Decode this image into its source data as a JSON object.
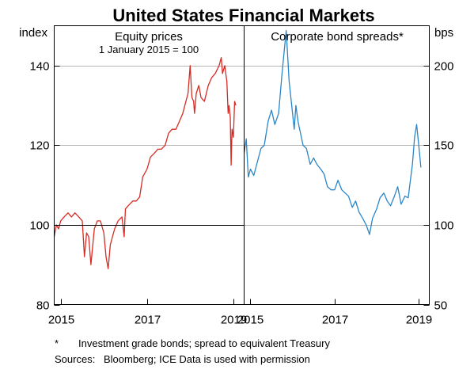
{
  "title": "United States Financial Markets",
  "footnote_marker": "*",
  "footnote_text": "Investment grade bonds; spread to equivalent Treasury",
  "sources": "Sources:",
  "sources_text": "Bloomberg; ICE Data is used with permission",
  "colors": {
    "equity": "#d62b24",
    "spreads": "#2a86c8",
    "grid": "#b4b4b4",
    "axis": "#000000"
  },
  "chart_data": [
    {
      "type": "line",
      "title": "Equity prices",
      "subtitle": "1 January 2015 = 100",
      "ylabel": "index",
      "ylim": [
        80,
        150
      ],
      "yticks": [
        80,
        100,
        120,
        140
      ],
      "xlim": [
        2014.85,
        2019.25
      ],
      "xticks": [
        2015,
        2017,
        2019
      ],
      "xticklabels": [
        "2015",
        "2017",
        "2019"
      ],
      "grid": true,
      "reference_line": 100,
      "series": [
        {
          "x": [
            2014.85,
            2014.9,
            2014.95,
            2015.0,
            2015.08,
            2015.17,
            2015.25,
            2015.33,
            2015.42,
            2015.5,
            2015.55,
            2015.6,
            2015.65,
            2015.7,
            2015.78,
            2015.85,
            2015.92,
            2016.0,
            2016.05,
            2016.1,
            2016.15,
            2016.2,
            2016.25,
            2016.33,
            2016.42,
            2016.47,
            2016.5,
            2016.58,
            2016.67,
            2016.75,
            2016.83,
            2016.9,
            2017.0,
            2017.08,
            2017.17,
            2017.25,
            2017.33,
            2017.42,
            2017.5,
            2017.58,
            2017.67,
            2017.75,
            2017.83,
            2017.9,
            2017.95,
            2018.0,
            2018.04,
            2018.08,
            2018.1,
            2018.14,
            2018.2,
            2018.25,
            2018.33,
            2018.42,
            2018.5,
            2018.58,
            2018.67,
            2018.72,
            2018.75,
            2018.8,
            2018.85,
            2018.88,
            2018.9,
            2018.93,
            2018.95,
            2018.97,
            2019.0,
            2019.03,
            2019.06
          ],
          "y": [
            97,
            100,
            99,
            101,
            102,
            103,
            102,
            103,
            102,
            101,
            92,
            98,
            97,
            90,
            99,
            101,
            101,
            98,
            92,
            89,
            95,
            97,
            99,
            101,
            102,
            97,
            104,
            105,
            106,
            106,
            107,
            112,
            114,
            117,
            118,
            119,
            119,
            120,
            123,
            124,
            124,
            126,
            128,
            131,
            133,
            140,
            132,
            131,
            128,
            133,
            135,
            132,
            131,
            135,
            137,
            138,
            140,
            142,
            138,
            140,
            136,
            128,
            130,
            127,
            115,
            124,
            122,
            131,
            130
          ]
        }
      ]
    },
    {
      "type": "line",
      "title": "Corporate bond spreads*",
      "ylabel": "bps",
      "ylim": [
        50,
        225
      ],
      "yticks": [
        50,
        100,
        150,
        200
      ],
      "xlim": [
        2014.85,
        2019.25
      ],
      "xticks": [
        2015,
        2017,
        2019
      ],
      "xticklabels": [
        "2015",
        "2017",
        "2019"
      ],
      "grid": true,
      "series": [
        {
          "x": [
            2014.85,
            2014.9,
            2014.95,
            2015.0,
            2015.08,
            2015.17,
            2015.25,
            2015.33,
            2015.42,
            2015.5,
            2015.58,
            2015.67,
            2015.75,
            2015.85,
            2015.92,
            2016.0,
            2016.04,
            2016.08,
            2016.13,
            2016.17,
            2016.25,
            2016.33,
            2016.42,
            2016.5,
            2016.58,
            2016.67,
            2016.75,
            2016.83,
            2016.92,
            2017.0,
            2017.08,
            2017.17,
            2017.25,
            2017.33,
            2017.42,
            2017.5,
            2017.58,
            2017.67,
            2017.75,
            2017.83,
            2017.9,
            2018.0,
            2018.08,
            2018.17,
            2018.25,
            2018.33,
            2018.42,
            2018.5,
            2018.58,
            2018.67,
            2018.75,
            2018.8,
            2018.85,
            2018.9,
            2018.95,
            2019.0,
            2019.05
          ],
          "y": [
            145,
            154,
            130,
            135,
            131,
            140,
            148,
            150,
            165,
            172,
            163,
            170,
            195,
            222,
            190,
            170,
            160,
            175,
            165,
            160,
            150,
            148,
            138,
            142,
            138,
            135,
            132,
            124,
            122,
            122,
            128,
            122,
            120,
            118,
            111,
            115,
            108,
            104,
            100,
            94,
            104,
            110,
            117,
            120,
            115,
            112,
            118,
            124,
            113,
            118,
            117,
            128,
            138,
            155,
            163,
            150,
            136
          ]
        }
      ]
    }
  ]
}
